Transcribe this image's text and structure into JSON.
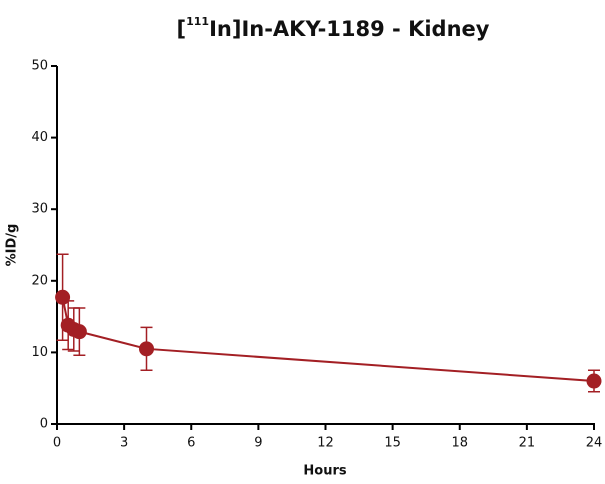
{
  "chart_data": {
    "type": "line",
    "title_parts": [
      "[",
      "111",
      "In]In-AKY-1189 - Kidney"
    ],
    "x_label": "Hours",
    "y_label": "%ID/g",
    "x": [
      0.25,
      0.5,
      0.75,
      1,
      4,
      24
    ],
    "values": [
      17.7,
      13.8,
      13.2,
      12.9,
      10.5,
      6.0
    ],
    "errors": [
      6.0,
      3.4,
      3.0,
      3.3,
      3.0,
      1.5
    ],
    "color": "#a31f24",
    "xlim": [
      0,
      24
    ],
    "xticks": [
      0,
      3,
      6,
      9,
      12,
      15,
      18,
      21,
      24
    ],
    "ylim": [
      0,
      50
    ],
    "yticks": [
      0,
      10,
      20,
      30,
      40,
      50
    ]
  }
}
